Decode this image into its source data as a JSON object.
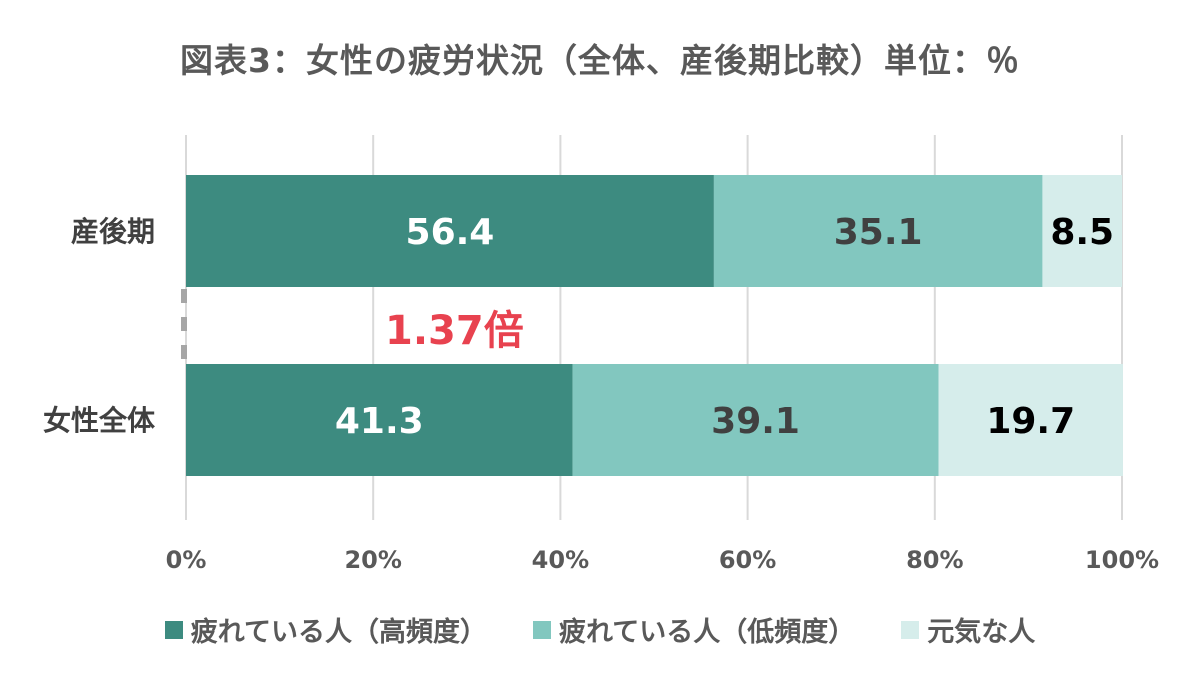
{
  "chart_data": {
    "type": "bar",
    "orientation": "horizontal",
    "stacked": true,
    "title": "図表3：女性の疲労状況（全体、産後期比較）単位：％",
    "categories": [
      "産後期",
      "女性全体"
    ],
    "series": [
      {
        "name": "疲れている人（高頻度）",
        "values": [
          56.4,
          41.3
        ],
        "color": "#3d8b80",
        "label_color": "#ffffff"
      },
      {
        "name": "疲れている人（低頻度）",
        "values": [
          35.1,
          39.1
        ],
        "color": "#82c7bf",
        "label_color": "#404040"
      },
      {
        "name": "元気な人",
        "values": [
          8.5,
          19.7
        ],
        "color": "#d6edeb",
        "label_color": "#000000"
      }
    ],
    "xlim": [
      0,
      100
    ],
    "xticks": [
      0,
      20,
      40,
      60,
      80,
      100
    ],
    "xtick_labels": [
      "0%",
      "20%",
      "40%",
      "60%",
      "80%",
      "100%"
    ],
    "grid": true,
    "legend_position": "bottom",
    "annotation": {
      "text": "1.37倍",
      "color": "#e8424f"
    }
  }
}
